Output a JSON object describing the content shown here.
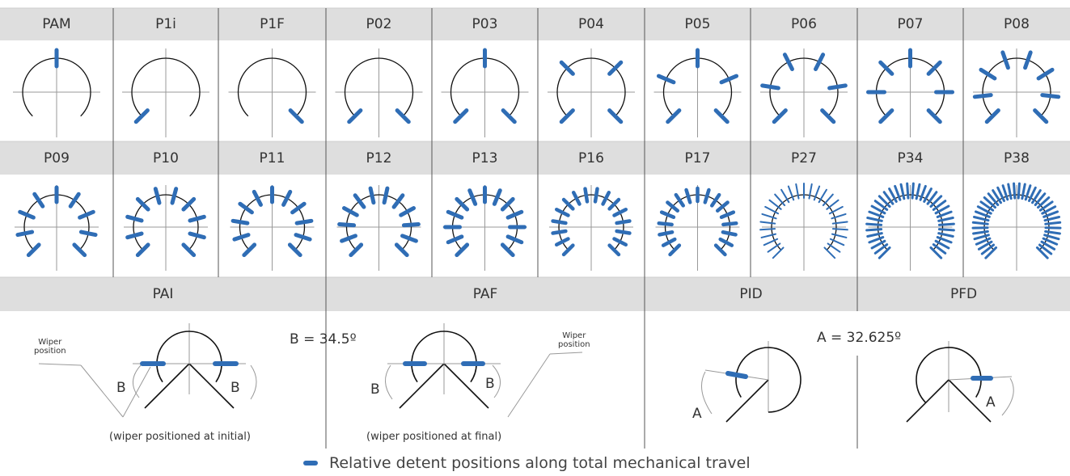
{
  "colors": {
    "detent": "#2f6db5",
    "header_bg": "#dedede",
    "line": "#111111",
    "axis": "#999999"
  },
  "row1": [
    {
      "code": "PAM",
      "arc": "full",
      "detents": 1
    },
    {
      "code": "P1i",
      "arc": "full",
      "detents": 1
    },
    {
      "code": "P1F",
      "arc": "full",
      "detents": 1
    },
    {
      "code": "P02",
      "arc": "full",
      "detents": 2
    },
    {
      "code": "P03",
      "arc": "full",
      "detents": 3
    },
    {
      "code": "P04",
      "arc": "full",
      "detents": 4
    },
    {
      "code": "P05",
      "arc": "full",
      "detents": 5
    },
    {
      "code": "P06",
      "arc": "full",
      "detents": 6
    },
    {
      "code": "P07",
      "arc": "full",
      "detents": 7
    },
    {
      "code": "P08",
      "arc": "full",
      "detents": 8
    }
  ],
  "row2": [
    {
      "code": "P09",
      "detents": 9
    },
    {
      "code": "P10",
      "detents": 10
    },
    {
      "code": "P11",
      "detents": 11
    },
    {
      "code": "P12",
      "detents": 12
    },
    {
      "code": "P13",
      "detents": 13
    },
    {
      "code": "P16",
      "detents": 16
    },
    {
      "code": "P17",
      "detents": 17
    },
    {
      "code": "P27",
      "detents": 27
    },
    {
      "code": "P34",
      "detents": 34
    },
    {
      "code": "P38",
      "detents": 38
    }
  ],
  "row3": {
    "headers": [
      "PAI",
      "PAF",
      "PID",
      "PFD"
    ],
    "b_value": "B = 34.5º",
    "a_value": "A = 32.625º",
    "wiper_label_line1": "Wiper",
    "wiper_label_line2": "position",
    "caption_initial": "(wiper positioned at initial)",
    "caption_final": "(wiper positioned at final)",
    "letter_b": "B",
    "letter_a": "A"
  },
  "legend": {
    "text": "Relative detent positions along total mechanical travel"
  }
}
